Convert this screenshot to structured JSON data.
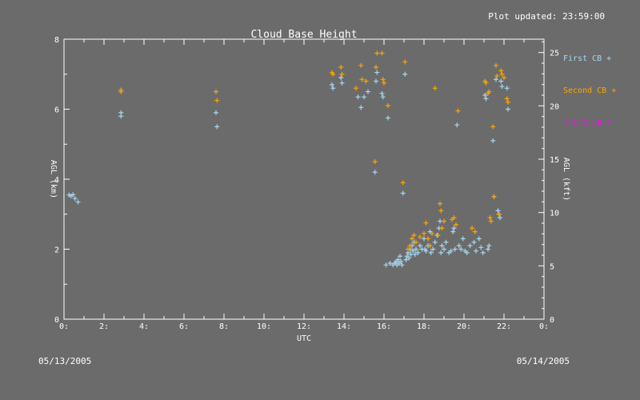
{
  "header": {
    "updated": "Plot updated: 23:59:00"
  },
  "footer": {
    "date_left": "05/13/2005",
    "date_right": "05/14/2005"
  },
  "chart_data": {
    "type": "scatter",
    "title": "Cloud Base Height",
    "xlabel": "UTC",
    "ylabel": "AGL (km)",
    "y2label": "AGL (kft)",
    "xlim": [
      0,
      24
    ],
    "ylim": [
      0,
      8
    ],
    "y2lim": [
      0,
      26.25
    ],
    "xticks": [
      "0:",
      "2:",
      "4:",
      "6:",
      "8:",
      "10:",
      "12:",
      "14:",
      "16:",
      "18:",
      "20:",
      "22:",
      "0:"
    ],
    "yticks": [
      "0",
      "2",
      "4",
      "6",
      "8"
    ],
    "y2ticks": [
      "0",
      "5",
      "10",
      "15",
      "20",
      "25"
    ],
    "grid": false,
    "legend": "right",
    "series": [
      {
        "name": "First CB +",
        "color": "#a6d8f0",
        "points": [
          [
            0.25,
            3.55
          ],
          [
            0.35,
            3.52
          ],
          [
            0.45,
            3.56
          ],
          [
            0.55,
            3.45
          ],
          [
            0.7,
            3.35
          ],
          [
            2.85,
            5.9
          ],
          [
            2.85,
            5.8
          ],
          [
            7.6,
            5.9
          ],
          [
            7.65,
            5.5
          ],
          [
            13.4,
            6.7
          ],
          [
            13.45,
            6.6
          ],
          [
            13.85,
            6.9
          ],
          [
            13.9,
            6.75
          ],
          [
            14.7,
            6.35
          ],
          [
            14.85,
            6.05
          ],
          [
            15.0,
            6.35
          ],
          [
            15.2,
            6.5
          ],
          [
            15.55,
            4.2
          ],
          [
            15.6,
            6.8
          ],
          [
            15.65,
            7.05
          ],
          [
            15.9,
            6.45
          ],
          [
            15.95,
            6.35
          ],
          [
            16.2,
            5.75
          ],
          [
            16.1,
            1.55
          ],
          [
            16.3,
            1.6
          ],
          [
            16.45,
            1.55
          ],
          [
            16.55,
            1.6
          ],
          [
            16.6,
            1.65
          ],
          [
            16.65,
            1.55
          ],
          [
            16.7,
            1.7
          ],
          [
            16.75,
            1.6
          ],
          [
            16.8,
            1.8
          ],
          [
            16.85,
            1.65
          ],
          [
            16.9,
            1.55
          ],
          [
            16.95,
            3.6
          ],
          [
            17.05,
            7.0
          ],
          [
            17.1,
            1.7
          ],
          [
            17.15,
            1.8
          ],
          [
            17.2,
            1.9
          ],
          [
            17.25,
            1.75
          ],
          [
            17.3,
            2.0
          ],
          [
            17.35,
            1.85
          ],
          [
            17.4,
            2.1
          ],
          [
            17.45,
            1.95
          ],
          [
            17.5,
            2.2
          ],
          [
            17.55,
            1.85
          ],
          [
            17.6,
            2.0
          ],
          [
            17.7,
            1.9
          ],
          [
            17.8,
            2.1
          ],
          [
            17.9,
            2.0
          ],
          [
            18.0,
            2.3
          ],
          [
            18.05,
            2.0
          ],
          [
            18.1,
            1.95
          ],
          [
            18.2,
            2.1
          ],
          [
            18.3,
            2.5
          ],
          [
            18.35,
            1.9
          ],
          [
            18.45,
            2.0
          ],
          [
            18.55,
            2.2
          ],
          [
            18.65,
            2.4
          ],
          [
            18.75,
            2.6
          ],
          [
            18.8,
            2.8
          ],
          [
            18.85,
            1.9
          ],
          [
            18.9,
            2.1
          ],
          [
            19.0,
            2.0
          ],
          [
            19.1,
            2.2
          ],
          [
            19.25,
            1.9
          ],
          [
            19.35,
            1.95
          ],
          [
            19.45,
            2.5
          ],
          [
            19.5,
            2.6
          ],
          [
            19.55,
            2.0
          ],
          [
            19.65,
            5.55
          ],
          [
            19.75,
            2.1
          ],
          [
            19.85,
            2.0
          ],
          [
            19.95,
            2.3
          ],
          [
            20.05,
            1.95
          ],
          [
            20.15,
            1.9
          ],
          [
            20.3,
            2.1
          ],
          [
            20.5,
            2.2
          ],
          [
            20.6,
            1.95
          ],
          [
            20.75,
            2.3
          ],
          [
            20.85,
            2.05
          ],
          [
            20.95,
            1.9
          ],
          [
            21.05,
            6.4
          ],
          [
            21.1,
            6.3
          ],
          [
            21.2,
            2.0
          ],
          [
            21.25,
            2.1
          ],
          [
            21.45,
            5.1
          ],
          [
            21.5,
            3.5
          ],
          [
            21.6,
            6.85
          ],
          [
            21.7,
            3.1
          ],
          [
            21.75,
            3.0
          ],
          [
            21.8,
            2.9
          ],
          [
            21.85,
            6.8
          ],
          [
            21.9,
            6.65
          ],
          [
            22.15,
            6.6
          ],
          [
            22.2,
            6.0
          ]
        ]
      },
      {
        "name": "Second CB +",
        "color": "#ffa500",
        "points": [
          [
            2.85,
            6.55
          ],
          [
            2.85,
            6.5
          ],
          [
            7.6,
            6.5
          ],
          [
            7.65,
            6.25
          ],
          [
            13.4,
            7.05
          ],
          [
            13.45,
            7.0
          ],
          [
            13.85,
            7.2
          ],
          [
            13.9,
            7.0
          ],
          [
            14.6,
            6.6
          ],
          [
            14.85,
            7.25
          ],
          [
            14.9,
            6.85
          ],
          [
            15.1,
            6.8
          ],
          [
            15.55,
            4.5
          ],
          [
            15.6,
            7.2
          ],
          [
            15.65,
            7.6
          ],
          [
            15.9,
            7.6
          ],
          [
            15.95,
            6.85
          ],
          [
            16.0,
            6.75
          ],
          [
            16.2,
            6.1
          ],
          [
            16.95,
            3.9
          ],
          [
            17.05,
            7.35
          ],
          [
            17.2,
            2.0
          ],
          [
            17.3,
            2.1
          ],
          [
            17.4,
            2.3
          ],
          [
            17.5,
            2.4
          ],
          [
            17.6,
            2.2
          ],
          [
            17.8,
            2.35
          ],
          [
            18.0,
            2.45
          ],
          [
            18.1,
            2.75
          ],
          [
            18.2,
            2.3
          ],
          [
            18.3,
            2.1
          ],
          [
            18.4,
            2.45
          ],
          [
            18.55,
            6.6
          ],
          [
            18.7,
            2.4
          ],
          [
            18.8,
            3.3
          ],
          [
            18.85,
            3.1
          ],
          [
            18.9,
            2.6
          ],
          [
            19.0,
            2.8
          ],
          [
            19.4,
            2.85
          ],
          [
            19.5,
            2.9
          ],
          [
            19.6,
            2.7
          ],
          [
            19.7,
            5.95
          ],
          [
            20.4,
            2.6
          ],
          [
            20.55,
            2.5
          ],
          [
            21.05,
            6.8
          ],
          [
            21.1,
            6.75
          ],
          [
            21.2,
            6.45
          ],
          [
            21.25,
            6.5
          ],
          [
            21.3,
            2.9
          ],
          [
            21.35,
            2.8
          ],
          [
            21.45,
            5.5
          ],
          [
            21.5,
            3.5
          ],
          [
            21.6,
            7.25
          ],
          [
            21.65,
            6.95
          ],
          [
            21.75,
            3.0
          ],
          [
            21.85,
            7.1
          ],
          [
            21.9,
            7.0
          ],
          [
            22.0,
            6.9
          ],
          [
            22.15,
            6.3
          ],
          [
            22.2,
            6.2
          ]
        ]
      },
      {
        "name": "Third CB +",
        "color": "#ff00ff",
        "points": []
      }
    ]
  }
}
